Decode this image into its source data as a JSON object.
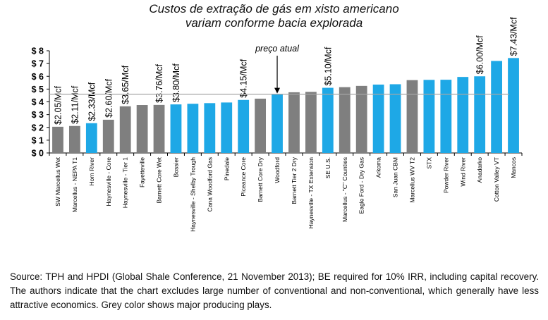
{
  "chart_data": {
    "type": "bar",
    "title": [
      "Custos de extração de gás em xisto americano",
      "variam conforme bacia   explorada"
    ],
    "categories": [
      "SW Marcellus Wet",
      "Marcellus - NEPA T1",
      "Horn River",
      "Haynesville - Core",
      "Haynesville - Tier 1",
      "Fayetteville",
      "Barnett Core Wet",
      "Bossier",
      "Haynesville - Shelby Trough",
      "Cana Woodford Gas",
      "Pinedale",
      "Piceance Core",
      "Barnett Core Dry",
      "Woodford",
      "Barnett Tier 2 Dry",
      "Haynesville - TX Extension",
      "SE U.S.",
      "Marcellus - \"C\" Counties",
      "Eagle Ford - Dry Gas",
      "Arkoma",
      "San Juan CBM",
      "Marcellus WV T2",
      "STX",
      "Powder River",
      "Wind River",
      "Anadarko",
      "Cotton Valley VT",
      "Mancos"
    ],
    "values": [
      2.05,
      2.11,
      2.33,
      2.6,
      3.65,
      3.75,
      3.76,
      3.8,
      3.85,
      3.9,
      3.95,
      4.15,
      4.25,
      4.58,
      4.75,
      4.78,
      5.1,
      5.15,
      5.25,
      5.35,
      5.38,
      5.7,
      5.72,
      5.73,
      5.95,
      6.0,
      7.2,
      7.43
    ],
    "colors": [
      "grey",
      "grey",
      "blue",
      "grey",
      "grey",
      "grey",
      "grey",
      "blue",
      "blue",
      "blue",
      "blue",
      "blue",
      "grey",
      "blue",
      "grey",
      "grey",
      "blue",
      "grey",
      "grey",
      "blue",
      "blue",
      "grey",
      "blue",
      "blue",
      "blue",
      "blue",
      "blue",
      "blue"
    ],
    "data_labels": [
      "$2.05/Mcf",
      "$2.11/Mcf",
      "$2.33/Mcf",
      "$2.60/Mcf",
      "$3.65/Mcf",
      "",
      "$3.76/Mcf",
      "$3.80/Mcf",
      "",
      "",
      "",
      "$4.15/Mcf",
      "",
      "",
      "",
      "",
      "$5.10/Mcf",
      "",
      "",
      "",
      "",
      "",
      "",
      "",
      "",
      "$6.00/Mcf",
      "",
      "$7.43/Mcf"
    ],
    "ylim": [
      0,
      8
    ],
    "yticks": [
      0,
      1,
      2,
      3,
      4,
      5,
      6,
      7,
      8
    ],
    "ytick_labels": [
      "$ 0",
      "$ 1",
      "$ 2",
      "$ 3",
      "$ 4",
      "$ 5",
      "$ 6",
      "$ 7",
      "$ 8"
    ],
    "reference_line": {
      "value": 4.6,
      "label": "preço atual"
    },
    "grid": false
  },
  "palette": {
    "grey": "#7f7f7f",
    "blue": "#1ea8e6",
    "reference": "#a6a6a6",
    "axis": "#000000"
  },
  "source_note": "Source: TPH and HPDI (Global Shale Conference, 21 November 2013); BE required for 10% IRR, including capital recovery. The authors indicate that the chart excludes large number of conventional and non-conventional, which generally have less attractive economics. Grey color shows major producing plays."
}
